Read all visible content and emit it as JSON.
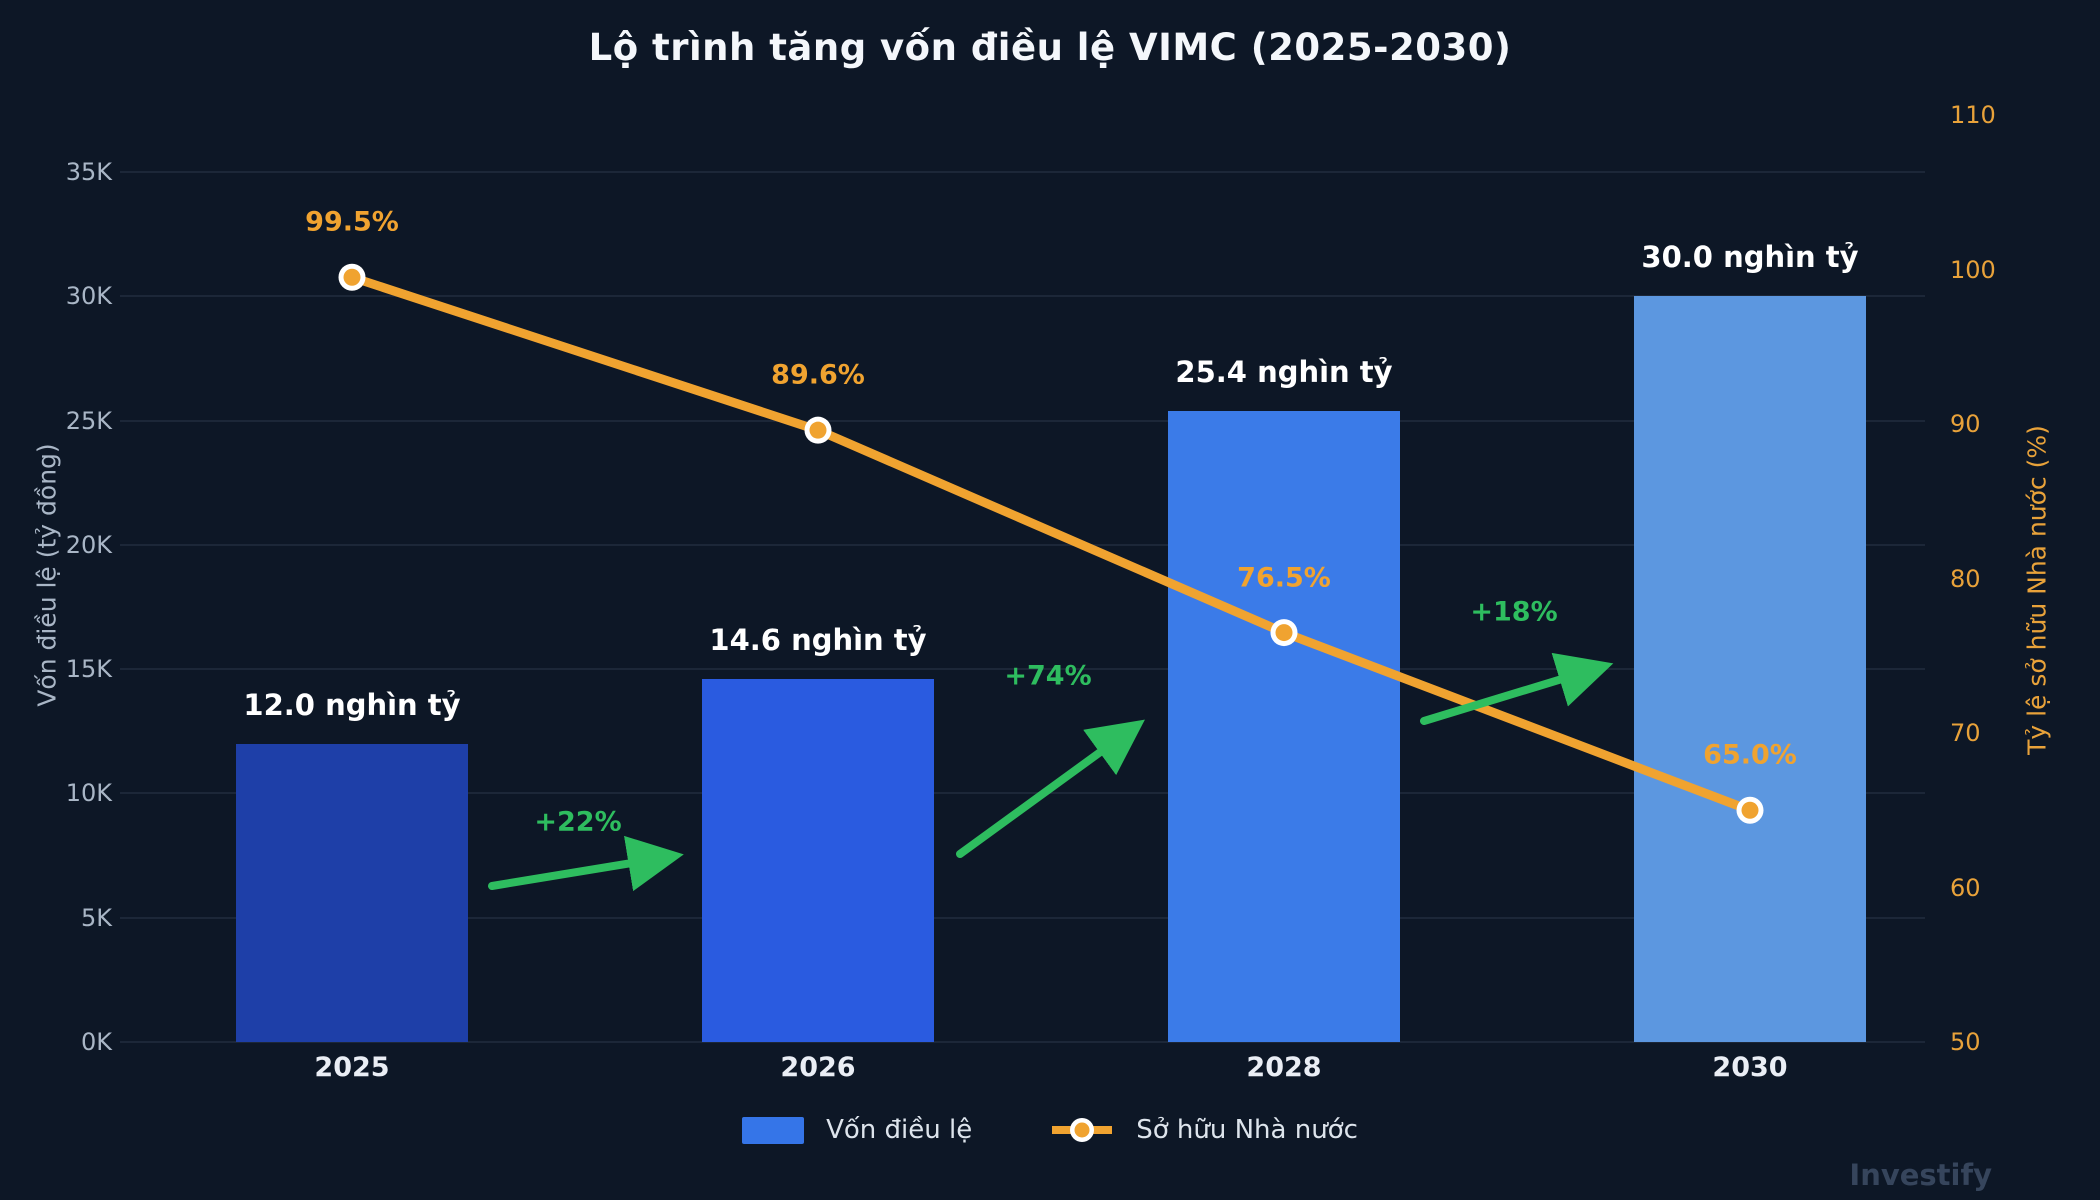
{
  "title": "Lộ trình tăng vốn điều lệ VIMC (2025-2030)",
  "watermark": "Investify",
  "legend": {
    "bar_label": "Vốn điều lệ",
    "line_label": "Sở hữu Nhà nước"
  },
  "left_axis": {
    "label": "Vốn điều lệ (tỷ đồng)",
    "ticks": [
      "0K",
      "5K",
      "10K",
      "15K",
      "20K",
      "25K",
      "30K",
      "35K"
    ],
    "tick_values": [
      0,
      5,
      10,
      15,
      20,
      25,
      30,
      35
    ]
  },
  "right_axis": {
    "label": "Tỷ lệ sở hữu Nhà nước (%)",
    "ticks": [
      "50",
      "60",
      "70",
      "80",
      "90",
      "100",
      "110"
    ],
    "tick_values": [
      50,
      60,
      70,
      80,
      90,
      100,
      110
    ]
  },
  "chart_data": {
    "type": "combo",
    "title": "Lộ trình tăng vốn điều lệ VIMC (2025-2030)",
    "categories": [
      "2025",
      "2026",
      "2028",
      "2030"
    ],
    "series": [
      {
        "name": "Vốn điều lệ",
        "type": "bar",
        "axis": "left",
        "unit": "nghìn tỷ đồng",
        "values": [
          12.0,
          14.6,
          25.4,
          30.0
        ],
        "value_labels": [
          "12.0 nghìn tỷ",
          "14.6 nghìn tỷ",
          "25.4 nghìn tỷ",
          "30.0 nghìn tỷ"
        ],
        "bar_colors": [
          "#1e3fa8",
          "#2a5be0",
          "#3b7be8",
          "#5c97e0"
        ]
      },
      {
        "name": "Sở hữu Nhà nước",
        "type": "line",
        "axis": "right",
        "unit": "%",
        "values": [
          99.5,
          89.6,
          76.5,
          65.0
        ],
        "value_labels": [
          "99.5%",
          "89.6%",
          "76.5%",
          "65.0%"
        ],
        "color": "#f0a330",
        "marker": "circle-white-ring"
      }
    ],
    "growth_annotations": [
      {
        "label": "+22%",
        "from": "2025",
        "to": "2026"
      },
      {
        "label": "+74%",
        "from": "2026",
        "to": "2028"
      },
      {
        "label": "+18%",
        "from": "2028",
        "to": "2030"
      }
    ],
    "xlabel": "",
    "ylabel_left": "Vốn điều lệ (tỷ đồng)",
    "ylabel_right": "Tỷ lệ sở hữu Nhà nước (%)",
    "left_ylim_nghin_ty": [
      0,
      35
    ],
    "right_ylim_percent": [
      50,
      110
    ],
    "grid": "horizontal",
    "legend_position": "bottom",
    "colors": {
      "background": "#0d1726",
      "grid": "#2a3a52",
      "growth_green": "#2ebd5f",
      "line_orange": "#f0a330",
      "tick_left": "#a9b6c6",
      "tick_right": "#e8a23a"
    }
  }
}
